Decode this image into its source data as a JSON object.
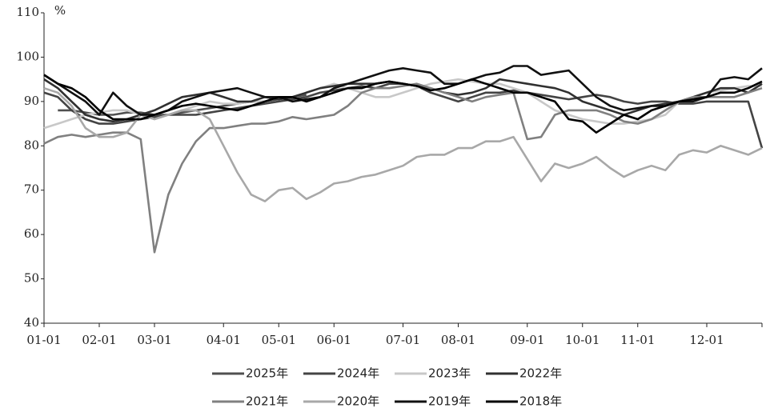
{
  "chart_data": {
    "type": "line",
    "y_label": "%",
    "categories": [
      "01-01",
      null,
      null,
      null,
      "02-01",
      null,
      null,
      null,
      "03-01",
      null,
      null,
      null,
      null,
      "04-01",
      null,
      null,
      null,
      "05-01",
      null,
      null,
      null,
      "06-01",
      null,
      null,
      null,
      null,
      "07-01",
      null,
      null,
      null,
      "08-01",
      null,
      null,
      null,
      null,
      "09-01",
      null,
      null,
      null,
      "10-01",
      null,
      null,
      null,
      "11-01",
      null,
      null,
      null,
      null,
      "12-01",
      null,
      null,
      null,
      null
    ],
    "ylim": [
      40,
      110
    ],
    "yticks": [
      40,
      50,
      60,
      70,
      80,
      90,
      100,
      110
    ],
    "legend": "bottom",
    "series": [
      {
        "name": "2025年",
        "color": "#505050",
        "values": [
          null,
          88,
          88,
          87.5,
          87,
          87,
          87.5,
          87.5,
          87,
          87,
          87.5,
          88,
          88.5,
          89,
          89.5,
          90,
          90,
          90.5,
          91,
          91.5,
          null,
          null,
          null,
          null,
          null,
          null,
          null,
          null,
          null,
          null,
          null,
          null,
          null,
          null,
          null,
          null,
          null,
          null,
          null,
          null,
          null,
          null,
          null,
          null,
          null,
          null,
          null,
          null,
          null,
          null,
          null,
          null,
          null
        ]
      },
      {
        "name": "2024年",
        "color": "#444444",
        "values": [
          92,
          91,
          88,
          86,
          85,
          85,
          85.5,
          86,
          86.5,
          87,
          87,
          87,
          87.5,
          88,
          88.5,
          89,
          89.5,
          90,
          90.5,
          91,
          92,
          92.5,
          93,
          93.5,
          93,
          94,
          94,
          93.5,
          92,
          91,
          90,
          91,
          92,
          92,
          92.5,
          92,
          91.5,
          91,
          90.5,
          91,
          91.5,
          91,
          90,
          89.5,
          90,
          90,
          89.5,
          89.5,
          90,
          90,
          90,
          90,
          79.5
        ]
      },
      {
        "name": "2023年",
        "color": "#c8c8c8",
        "values": [
          84,
          85,
          86,
          87,
          87.5,
          88,
          88,
          87,
          86,
          87,
          88,
          89,
          90,
          89.5,
          89.5,
          90,
          90,
          91,
          91,
          92,
          93,
          94,
          93,
          92,
          91,
          91,
          92,
          93,
          94,
          94.5,
          95,
          94.5,
          94,
          94,
          93,
          92,
          90,
          88,
          87,
          86,
          85.5,
          85,
          85,
          85.5,
          86,
          87,
          90,
          91,
          92,
          92.5,
          93,
          93.5,
          93.5
        ]
      },
      {
        "name": "2022年",
        "color": "#303030",
        "values": [
          95,
          93,
          90,
          87,
          86,
          85.5,
          86,
          87,
          88,
          89.5,
          91,
          91.5,
          92,
          91,
          90,
          90,
          91,
          90.5,
          91,
          92,
          93,
          93.5,
          94,
          94,
          94,
          94.5,
          94,
          93.5,
          93,
          92,
          91.5,
          92,
          93,
          95,
          94.5,
          94,
          93.5,
          93,
          92,
          90,
          89,
          88,
          87,
          88,
          89,
          89.5,
          90,
          91,
          92,
          93,
          93,
          92,
          94
        ]
      },
      {
        "name": "2021年",
        "color": "#808080",
        "values": [
          80.5,
          82,
          82.5,
          82,
          82.5,
          83,
          83,
          81.5,
          56,
          69,
          76,
          81,
          84,
          84,
          84.5,
          85,
          85,
          85.5,
          86.5,
          86,
          86.5,
          87,
          89,
          92,
          93,
          93,
          93.5,
          94,
          93,
          92,
          91,
          90,
          91,
          91.5,
          92,
          81.5,
          82,
          87,
          88,
          88,
          88,
          87,
          85.5,
          85,
          86,
          88,
          90,
          91,
          91,
          91,
          91,
          92,
          93
        ]
      },
      {
        "name": "2020年",
        "color": "#a8a8a8",
        "values": [
          93,
          92,
          89,
          84,
          82,
          82,
          83,
          87,
          86,
          87,
          88,
          88,
          86,
          80,
          74,
          69,
          67.5,
          70,
          70.5,
          68,
          69.5,
          71.5,
          72,
          73,
          73.5,
          74.5,
          75.5,
          77.5,
          78,
          78,
          79.5,
          79.5,
          81,
          81,
          82,
          77,
          72,
          76,
          75,
          76,
          77.5,
          75,
          73,
          74.5,
          75.5,
          74.5,
          78,
          79,
          78.5,
          80,
          79,
          78,
          79.5
        ]
      },
      {
        "name": "2019年",
        "color": "#111111",
        "values": [
          96,
          94,
          92,
          90,
          87,
          92,
          89,
          87,
          87,
          88,
          90,
          91,
          92,
          92.5,
          93,
          92,
          91,
          91,
          90,
          90.5,
          91,
          93,
          94,
          95,
          96,
          97,
          97.5,
          97,
          96.5,
          94,
          94,
          95,
          96,
          96.5,
          98,
          98,
          96,
          96.5,
          97,
          94,
          91,
          89,
          88,
          88.5,
          89,
          89,
          90,
          90,
          91,
          95,
          95.5,
          95,
          97.5
        ]
      },
      {
        "name": "2018年",
        "color": "#000000",
        "values": [
          96,
          94,
          93,
          91,
          88,
          86,
          86,
          86,
          87,
          88,
          89,
          89.5,
          89,
          88.5,
          88,
          89,
          90,
          91,
          91,
          90,
          91,
          92,
          93,
          93,
          94,
          94.5,
          94,
          93.5,
          92.5,
          93,
          94,
          95,
          94,
          93,
          92,
          92,
          91,
          90,
          86,
          85.5,
          83,
          85,
          87,
          86,
          88,
          89,
          90,
          90.5,
          91,
          92,
          92,
          93,
          94.5
        ]
      }
    ]
  }
}
